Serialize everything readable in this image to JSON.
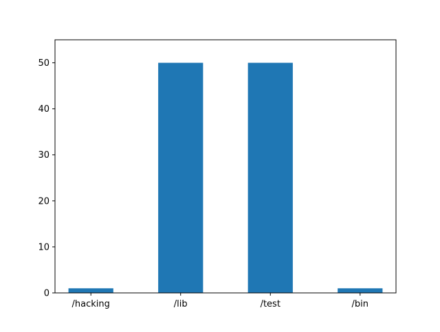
{
  "chart_data": {
    "type": "bar",
    "title": "",
    "xlabel": "",
    "ylabel": "",
    "categories": [
      "/hacking",
      "/lib",
      "/test",
      "/bin"
    ],
    "values": [
      1,
      50,
      50,
      1
    ],
    "ylim": [
      0,
      55
    ],
    "yticks": [
      0,
      10,
      20,
      30,
      40,
      50
    ],
    "grid": false,
    "legend": "none",
    "bar_color": "#1f77b4",
    "axis_color": "#000000"
  }
}
